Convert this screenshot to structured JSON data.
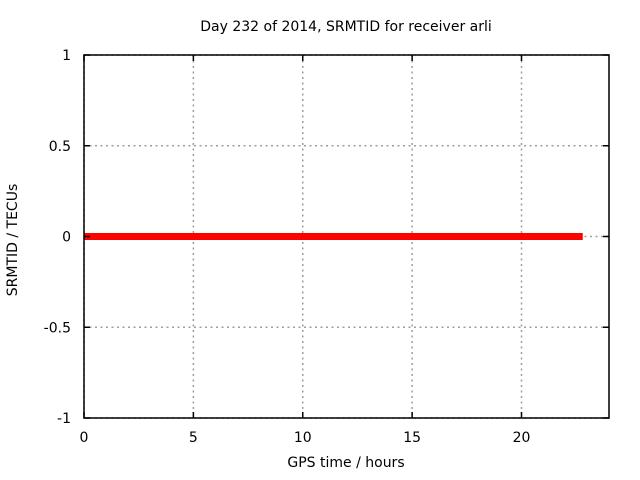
{
  "chart_data": {
    "type": "line",
    "title": "Day 232 of 2014, SRMTID for receiver arli",
    "xlabel": "GPS time / hours",
    "ylabel": "SRMTID / TECUs",
    "xlim": [
      0,
      24
    ],
    "ylim": [
      -1,
      1
    ],
    "xticks": [
      0,
      5,
      10,
      15,
      20
    ],
    "xtick_labels": [
      "0",
      "5",
      "10",
      "15",
      "20"
    ],
    "yticks": [
      -1,
      -0.5,
      0,
      0.5,
      1
    ],
    "ytick_labels": [
      "-1",
      "-0.5",
      "0",
      "0.5",
      "1"
    ],
    "grid": true,
    "grid_style": "dashed",
    "legend": "none",
    "series": [
      {
        "name": "SRMTID",
        "color": "#ff0000",
        "linewidth": 7,
        "x": [
          0,
          22.8
        ],
        "y": [
          0,
          0
        ]
      }
    ],
    "colors": {
      "background": "#ffffff",
      "border": "#000000",
      "grid": "#9e9e9e",
      "text": "#000000",
      "series": "#ff0000"
    }
  }
}
